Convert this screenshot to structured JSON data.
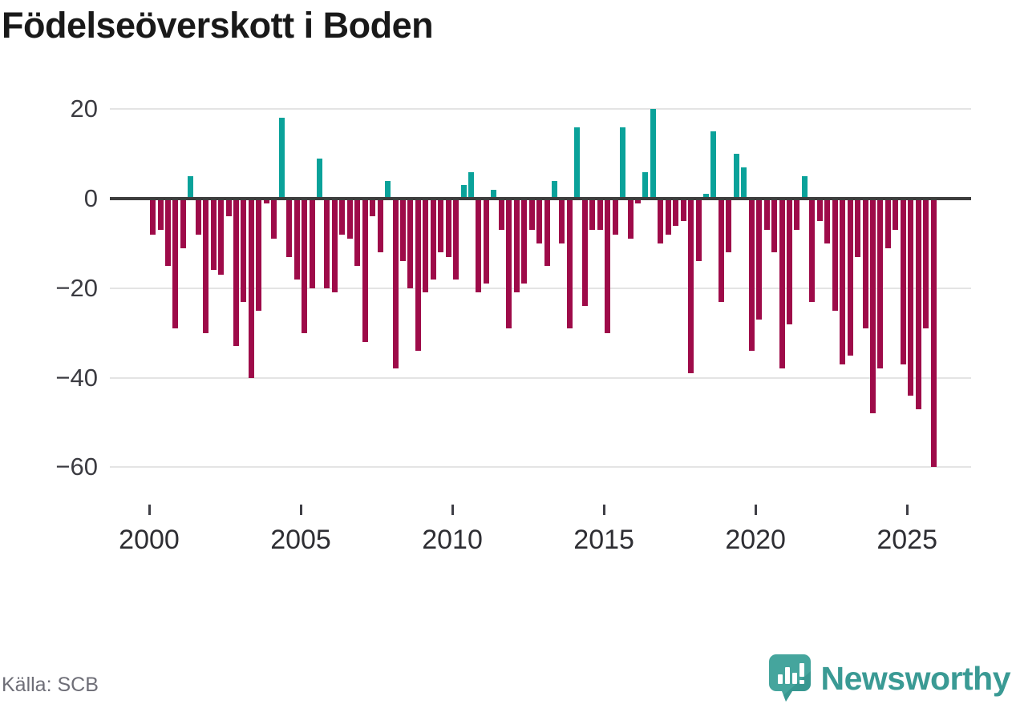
{
  "title": "Födelseöverskott i Boden",
  "source": "Källa: SCB",
  "brand": {
    "name": "Newsworthy",
    "color": "#3a9a94",
    "icon": "speech-bubble-bar-chart-exclamation"
  },
  "colors": {
    "positive_bar": "#0aa29a",
    "negative_bar": "#9e0b49",
    "axis_line": "#3d3d3d",
    "gridline": "#e4e4e4",
    "title_text": "#191919",
    "tick_text": "#2e2e33",
    "source_text": "#6e6e77"
  },
  "chart_data": {
    "type": "bar",
    "title": "Födelseöverskott i Boden",
    "xlabel": "",
    "ylabel": "",
    "period": "quarterly",
    "grid": "horizontal",
    "legend": "none",
    "ylim": [
      -62,
      22
    ],
    "y_tick_values": [
      20,
      0,
      -20,
      -40,
      -60
    ],
    "y_tick_labels": [
      "20",
      "0",
      "−20",
      "−40",
      "−60"
    ],
    "x_ticks": [
      {
        "label": "2000",
        "index": 0
      },
      {
        "label": "2005",
        "index": 20
      },
      {
        "label": "2010",
        "index": 40
      },
      {
        "label": "2015",
        "index": 60
      },
      {
        "label": "2020",
        "index": 80
      },
      {
        "label": "2025",
        "index": 100
      }
    ],
    "categories": [
      "2000Q1",
      "2000Q2",
      "2000Q3",
      "2000Q4",
      "2001Q1",
      "2001Q2",
      "2001Q3",
      "2001Q4",
      "2002Q1",
      "2002Q2",
      "2002Q3",
      "2002Q4",
      "2003Q1",
      "2003Q2",
      "2003Q3",
      "2003Q4",
      "2004Q1",
      "2004Q2",
      "2004Q3",
      "2004Q4",
      "2005Q1",
      "2005Q2",
      "2005Q3",
      "2005Q4",
      "2006Q1",
      "2006Q2",
      "2006Q3",
      "2006Q4",
      "2007Q1",
      "2007Q2",
      "2007Q3",
      "2007Q4",
      "2008Q1",
      "2008Q2",
      "2008Q3",
      "2008Q4",
      "2009Q1",
      "2009Q2",
      "2009Q3",
      "2009Q4",
      "2010Q1",
      "2010Q2",
      "2010Q3",
      "2010Q4",
      "2011Q1",
      "2011Q2",
      "2011Q3",
      "2011Q4",
      "2012Q1",
      "2012Q2",
      "2012Q3",
      "2012Q4",
      "2013Q1",
      "2013Q2",
      "2013Q3",
      "2013Q4",
      "2014Q1",
      "2014Q2",
      "2014Q3",
      "2014Q4",
      "2015Q1",
      "2015Q2",
      "2015Q3",
      "2015Q4",
      "2016Q1",
      "2016Q2",
      "2016Q3",
      "2016Q4",
      "2017Q1",
      "2017Q2",
      "2017Q3",
      "2017Q4",
      "2018Q1",
      "2018Q2",
      "2018Q3",
      "2018Q4",
      "2019Q1",
      "2019Q2",
      "2019Q3",
      "2019Q4",
      "2020Q1",
      "2020Q2",
      "2020Q3",
      "2020Q4",
      "2021Q1",
      "2021Q2",
      "2021Q3",
      "2021Q4",
      "2022Q1",
      "2022Q2",
      "2022Q3",
      "2022Q4",
      "2023Q1",
      "2023Q2",
      "2023Q3",
      "2023Q4",
      "2024Q1",
      "2024Q2",
      "2024Q3",
      "2024Q4",
      "2025Q1",
      "2025Q2",
      "2025Q3",
      "2025Q4"
    ],
    "values": [
      -8,
      -7,
      -15,
      -29,
      -11,
      5,
      -8,
      -30,
      -16,
      -17,
      -4,
      -33,
      -23,
      -40,
      -25,
      -1,
      -9,
      18,
      -13,
      -18,
      -30,
      -20,
      9,
      -20,
      -21,
      -8,
      -9,
      -15,
      -32,
      -4,
      -12,
      4,
      -38,
      -14,
      -20,
      -34,
      -21,
      -18,
      -12,
      -13,
      -18,
      3,
      6,
      -21,
      -19,
      2,
      -7,
      -29,
      -21,
      -19,
      -7,
      -10,
      -15,
      4,
      -10,
      -29,
      16,
      -24,
      -7,
      -7,
      -30,
      -8,
      16,
      -9,
      -1,
      6,
      20,
      -10,
      -8,
      -6,
      -5,
      -39,
      -14,
      1,
      15,
      -23,
      -12,
      10,
      7,
      -34,
      -27,
      -7,
      -12,
      -38,
      -28,
      -7,
      5,
      -23,
      -5,
      -10,
      -25,
      -37,
      -35,
      -13,
      -29,
      -48,
      -38,
      -11,
      -7,
      -37,
      -44,
      -47,
      -29,
      -60
    ]
  }
}
